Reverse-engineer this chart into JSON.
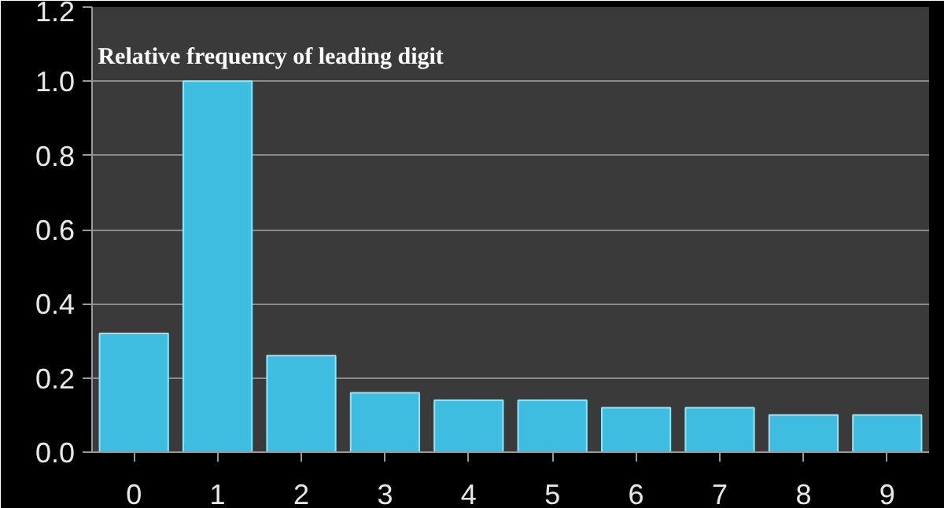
{
  "chart_data": {
    "type": "bar",
    "title": "Relative frequency of leading digit",
    "categories": [
      "0",
      "1",
      "2",
      "3",
      "4",
      "5",
      "6",
      "7",
      "8",
      "9"
    ],
    "values": [
      0.32,
      1.0,
      0.26,
      0.16,
      0.14,
      0.14,
      0.12,
      0.12,
      0.1,
      0.1
    ],
    "color": "#3fbde0",
    "ylim": [
      0,
      1.2
    ],
    "yticks": [
      {
        "value": 0,
        "label": "0.0"
      },
      {
        "value": 0.2,
        "label": "0.2"
      },
      {
        "value": 0.4,
        "label": "0.4"
      },
      {
        "value": 0.6,
        "label": "0.6"
      },
      {
        "value": 0.8,
        "label": "0.8"
      },
      {
        "value": 1.0,
        "label": "1.0"
      },
      {
        "value": 1.2,
        "label": "1.2"
      }
    ],
    "grid": "y"
  }
}
